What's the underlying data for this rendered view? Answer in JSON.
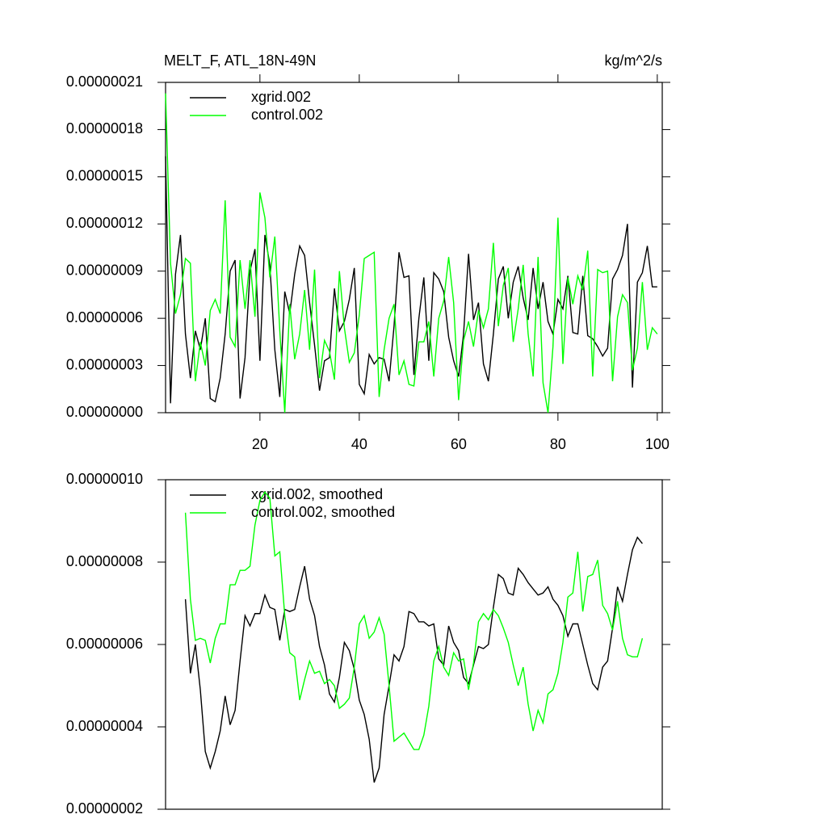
{
  "chart_data": [
    {
      "type": "line",
      "title": "MELT_F, ATL_18N-49N",
      "units": "kg/m^2/s",
      "xlim": [
        1,
        101
      ],
      "xticks": [
        20,
        40,
        60,
        80,
        100
      ],
      "ylim": [
        0,
        2.1e-07
      ],
      "yticks": [
        {
          "value": 0,
          "label": "0.00000000"
        },
        {
          "value": 3e-08,
          "label": "0.00000003"
        },
        {
          "value": 6e-08,
          "label": "0.00000006"
        },
        {
          "value": 9e-08,
          "label": "0.00000009"
        },
        {
          "value": 1.2e-07,
          "label": "0.00000012"
        },
        {
          "value": 1.5e-07,
          "label": "0.00000015"
        },
        {
          "value": 1.8e-07,
          "label": "0.00000018"
        },
        {
          "value": 2.1e-07,
          "label": "0.00000021"
        }
      ],
      "x": [
        1,
        2,
        3,
        4,
        5,
        6,
        7,
        8,
        9,
        10,
        11,
        12,
        13,
        14,
        15,
        16,
        17,
        18,
        19,
        20,
        21,
        22,
        23,
        24,
        25,
        26,
        27,
        28,
        29,
        30,
        31,
        32,
        33,
        34,
        35,
        36,
        37,
        38,
        39,
        40,
        41,
        42,
        43,
        44,
        45,
        46,
        47,
        48,
        49,
        50,
        51,
        52,
        53,
        54,
        55,
        56,
        57,
        58,
        59,
        60,
        61,
        62,
        63,
        64,
        65,
        66,
        67,
        68,
        69,
        70,
        71,
        72,
        73,
        74,
        75,
        76,
        77,
        78,
        79,
        80,
        81,
        82,
        83,
        84,
        85,
        86,
        87,
        88,
        89,
        90,
        91,
        92,
        93,
        94,
        95,
        96,
        97,
        98,
        99,
        100
      ],
      "series": [
        {
          "name": "xgrid.002",
          "color": "#000000",
          "values": [
            1.63e-07,
            6e-09,
            8.8e-08,
            1.13e-07,
            5e-08,
            2.2e-08,
            5.2e-08,
            4e-08,
            6e-08,
            9e-09,
            7e-09,
            2.2e-08,
            5e-08,
            9e-08,
            9.7e-08,
            9e-09,
            3.5e-08,
            9e-08,
            1.04e-07,
            3.3e-08,
            1.13e-07,
            9.4e-08,
            4e-08,
            1e-08,
            7.7e-08,
            6.3e-08,
            8.8e-08,
            1.06e-07,
            1e-07,
            7e-08,
            4.3e-08,
            1.4e-08,
            3.3e-08,
            3.5e-08,
            7.9e-08,
            5.2e-08,
            5.8e-08,
            7.2e-08,
            9.2e-08,
            1.8e-08,
            1.2e-08,
            3.7e-08,
            3.1e-08,
            3.5e-08,
            3.4e-08,
            2e-08,
            5.5e-08,
            1.02e-07,
            8.6e-08,
            8.7e-08,
            2.4e-08,
            6e-08,
            8.6e-08,
            3.3e-08,
            8.9e-08,
            8.5e-08,
            7.7e-08,
            4.8e-08,
            3.3e-08,
            2.3e-08,
            5e-08,
            1.01e-07,
            5.9e-08,
            7e-08,
            3.1e-08,
            2e-08,
            5e-08,
            8.5e-08,
            9.3e-08,
            6e-08,
            8.3e-08,
            9.3e-08,
            7.3e-08,
            5.9e-08,
            9.2e-08,
            6.6e-08,
            8.3e-08,
            5.8e-08,
            5e-08,
            7.2e-08,
            6.6e-08,
            8.7e-08,
            5.1e-08,
            5e-08,
            8.7e-08,
            4.9e-08,
            4.7e-08,
            4.2e-08,
            3.6e-08,
            4.1e-08,
            8.5e-08,
            9.1e-08,
            1e-07,
            1.2e-07,
            1.6e-08,
            8.3e-08,
            8.9e-08,
            1.06e-07,
            8e-08,
            8e-08
          ]
        },
        {
          "name": "control.002",
          "color": "#00ff00",
          "values": [
            2.03e-07,
            9.5e-08,
            6.3e-08,
            7.5e-08,
            9.8e-08,
            9.5e-08,
            2e-08,
            4.5e-08,
            3e-08,
            6.5e-08,
            7.2e-08,
            6.3e-08,
            1.35e-07,
            4.8e-08,
            4.2e-08,
            9.7e-08,
            6.6e-08,
            9.7e-08,
            6.1e-08,
            1.4e-07,
            1.24e-07,
            8.6e-08,
            1.12e-07,
            5.2e-08,
            0,
            6.9e-08,
            3.4e-08,
            5e-08,
            7.8e-08,
            4e-08,
            9.1e-08,
            2.2e-08,
            4.6e-08,
            3.9e-08,
            2.1e-08,
            9e-08,
            5.4e-08,
            3.2e-08,
            3.8e-08,
            6.2e-08,
            9.8e-08,
            1e-07,
            1.02e-07,
            1e-08,
            4e-08,
            6e-08,
            6.9e-08,
            2.4e-08,
            3.3e-08,
            1.8e-08,
            1.7e-08,
            4.5e-08,
            4.5e-08,
            5.8e-08,
            2.3e-08,
            6e-08,
            7.1e-08,
            9.9e-08,
            7e-08,
            8e-09,
            4.6e-08,
            5.8e-08,
            4.2e-08,
            6.5e-08,
            5.4e-08,
            6.6e-08,
            1.08e-07,
            5.5e-08,
            8.1e-08,
            9.2e-08,
            4.5e-08,
            6.6e-08,
            9.4e-08,
            5e-08,
            2.3e-08,
            9.9e-08,
            1.9e-08,
            0,
            4.2e-08,
            1.24e-07,
            3.1e-08,
            8.6e-08,
            6.9e-08,
            8.7e-08,
            7.8e-08,
            1.03e-07,
            2.3e-08,
            9.1e-08,
            8.9e-08,
            9e-08,
            2e-08,
            6.1e-08,
            7.5e-08,
            7e-08,
            2.7e-08,
            4.1e-08,
            8.3e-08,
            4e-08,
            5.4e-08,
            5e-08
          ]
        }
      ]
    },
    {
      "type": "line",
      "xlim": [
        1,
        101
      ],
      "ylim": [
        2e-08,
        1e-07
      ],
      "yticks": [
        {
          "value": 2e-08,
          "label": "0.00000002"
        },
        {
          "value": 4e-08,
          "label": "0.00000004"
        },
        {
          "value": 6e-08,
          "label": "0.00000006"
        },
        {
          "value": 8e-08,
          "label": "0.00000008"
        },
        {
          "value": 1e-07,
          "label": "0.00000010"
        }
      ],
      "x": [
        5,
        6,
        7,
        8,
        9,
        10,
        11,
        12,
        13,
        14,
        15,
        16,
        17,
        18,
        19,
        20,
        21,
        22,
        23,
        24,
        25,
        26,
        27,
        28,
        29,
        30,
        31,
        32,
        33,
        34,
        35,
        36,
        37,
        38,
        39,
        40,
        41,
        42,
        43,
        44,
        45,
        46,
        47,
        48,
        49,
        50,
        51,
        52,
        53,
        54,
        55,
        56,
        57,
        58,
        59,
        60,
        61,
        62,
        63,
        64,
        65,
        66,
        67,
        68,
        69,
        70,
        71,
        72,
        73,
        74,
        75,
        76,
        77,
        78,
        79,
        80,
        81,
        82,
        83,
        84,
        85,
        86,
        87,
        88,
        89,
        90,
        91,
        92,
        93,
        94,
        95,
        96,
        97
      ],
      "series": [
        {
          "name": "xgrid.002, smoothed",
          "color": "#000000",
          "values": [
            7.1e-08,
            5.3e-08,
            6e-08,
            4.9e-08,
            3.4e-08,
            3e-08,
            3.4e-08,
            3.9e-08,
            4.75e-08,
            4.05e-08,
            4.4e-08,
            5.6e-08,
            6.7e-08,
            6.45e-08,
            6.75e-08,
            6.75e-08,
            7.2e-08,
            6.9e-08,
            6.85e-08,
            6.1e-08,
            6.85e-08,
            6.8e-08,
            6.85e-08,
            7.4e-08,
            7.9e-08,
            7.1e-08,
            6.7e-08,
            5.95e-08,
            5.5e-08,
            4.8e-08,
            4.6e-08,
            5.2e-08,
            6.05e-08,
            5.85e-08,
            5.4e-08,
            4.65e-08,
            4.3e-08,
            3.7e-08,
            2.65e-08,
            3e-08,
            4.3e-08,
            5e-08,
            5.75e-08,
            5.6e-08,
            5.95e-08,
            6.8e-08,
            6.75e-08,
            6.55e-08,
            6.55e-08,
            6.45e-08,
            6.5e-08,
            5.65e-08,
            5.5e-08,
            6.45e-08,
            6.05e-08,
            5.85e-08,
            5.2e-08,
            5.05e-08,
            5.5e-08,
            5.95e-08,
            5.9e-08,
            6e-08,
            6.9e-08,
            7.7e-08,
            7.6e-08,
            7.25e-08,
            7.2e-08,
            7.85e-08,
            7.7e-08,
            7.5e-08,
            7.35e-08,
            7.2e-08,
            7.25e-08,
            7.4e-08,
            7.1e-08,
            6.95e-08,
            6.7e-08,
            6.2e-08,
            6.5e-08,
            6.5e-08,
            6e-08,
            5.5e-08,
            5.05e-08,
            4.9e-08,
            5.45e-08,
            5.6e-08,
            6.4e-08,
            7.4e-08,
            7.05e-08,
            7.7e-08,
            8.3e-08,
            8.6e-08,
            8.45e-08
          ]
        },
        {
          "name": "control.002, smoothed",
          "color": "#00ff00",
          "values": [
            9.2e-08,
            7.1e-08,
            6.1e-08,
            6.15e-08,
            6.1e-08,
            5.55e-08,
            6.15e-08,
            6.5e-08,
            6.5e-08,
            7.45e-08,
            7.45e-08,
            7.8e-08,
            7.8e-08,
            7.9e-08,
            8.9e-08,
            9.5e-08,
            9.7e-08,
            9.55e-08,
            8.15e-08,
            8.25e-08,
            6.7e-08,
            5.8e-08,
            5.7e-08,
            4.65e-08,
            5.15e-08,
            5.6e-08,
            5.3e-08,
            5.35e-08,
            5.05e-08,
            5.15e-08,
            5e-08,
            4.45e-08,
            4.55e-08,
            4.7e-08,
            5.45e-08,
            6.5e-08,
            6.7e-08,
            6.15e-08,
            6.3e-08,
            6.65e-08,
            6.25e-08,
            5e-08,
            3.65e-08,
            3.75e-08,
            3.85e-08,
            3.65e-08,
            3.45e-08,
            3.45e-08,
            3.8e-08,
            4.5e-08,
            5.6e-08,
            5.95e-08,
            5.45e-08,
            5.25e-08,
            5.8e-08,
            5.6e-08,
            5.65e-08,
            4.9e-08,
            5.55e-08,
            6.55e-08,
            6.75e-08,
            6.6e-08,
            6.85e-08,
            6.7e-08,
            6.4e-08,
            6.05e-08,
            5.5e-08,
            5e-08,
            5.45e-08,
            4.55e-08,
            3.9e-08,
            4.4e-08,
            4.1e-08,
            4.8e-08,
            4.9e-08,
            5.3e-08,
            6.05e-08,
            7.15e-08,
            7.25e-08,
            8.25e-08,
            6.8e-08,
            7.65e-08,
            7.7e-08,
            8.05e-08,
            6.95e-08,
            6.75e-08,
            6.35e-08,
            7.05e-08,
            6.15e-08,
            5.75e-08,
            5.7e-08,
            5.7e-08,
            6.15e-08
          ]
        }
      ]
    }
  ]
}
